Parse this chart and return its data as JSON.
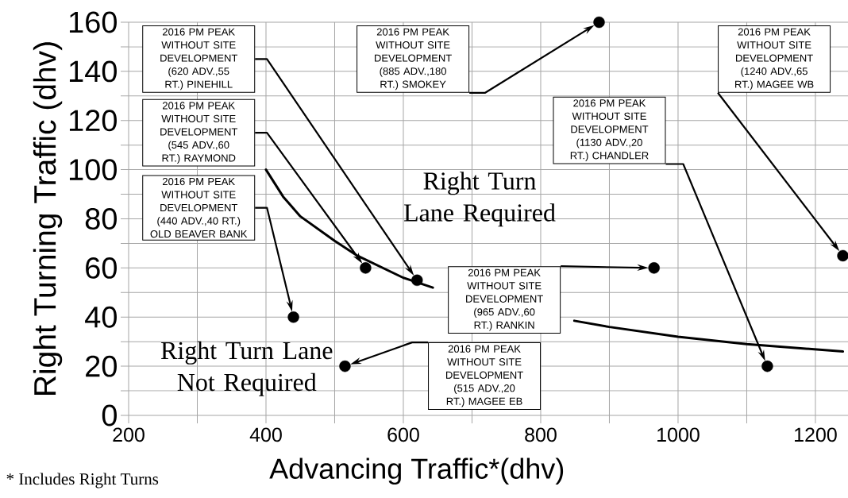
{
  "chart_data": {
    "type": "scatter",
    "xlabel": "Advancing Traffic*(dhv)",
    "ylabel": "Right Turning Traffic (dhv)",
    "xlim": [
      200,
      1250
    ],
    "ylim": [
      0,
      160
    ],
    "xticks": [
      200,
      400,
      600,
      800,
      1000,
      1200
    ],
    "yticks": [
      0,
      20,
      40,
      60,
      80,
      100,
      120,
      140,
      160
    ],
    "grid": true,
    "series": [
      {
        "type": "scatter",
        "color": "#000000",
        "marker": "circle",
        "x": [
          620,
          885,
          545,
          440,
          1240,
          1130,
          965,
          515
        ],
        "values": [
          55,
          160,
          60,
          40,
          65,
          20,
          60,
          20
        ]
      },
      {
        "type": "line",
        "color": "#000000",
        "marker": "none",
        "line_style": "solid",
        "x": [
          400,
          425,
          450,
          500,
          533,
          600,
          643,
          700,
          800,
          849,
          900,
          1000,
          1100,
          1240
        ],
        "values": [
          100,
          89,
          81,
          71,
          65,
          56,
          52,
          null,
          null,
          38.5,
          36,
          32,
          29,
          26
        ]
      }
    ],
    "annotations": [
      "2016 PM PEAK WITHOUT SITE DEVELOPMENT (620 ADV.,55 RT.) PINEHILL",
      "2016 PM PEAK WITHOUT SITE DEVELOPMENT (885 ADV.,180 RT.) SMOKEY",
      "2016 PM PEAK WITHOUT SITE DEVELOPMENT (545 ADV.,60 RT.) RAYMOND",
      "2016 PM PEAK WITHOUT SITE DEVELOPMENT (440 ADV.,40 RT.) OLD BEAVER BANK",
      "2016 PM PEAK WITHOUT SITE DEVELOPMENT (1240 ADV.,65 RT.) MAGEE WB",
      "2016 PM PEAK WITHOUT SITE DEVELOPMENT (1130 ADV.,20 RT.) CHANDLER",
      "2016 PM PEAK WITHOUT SITE DEVELOPMENT (965 ADV.,60 RT.) RANKIN",
      "2016 PM PEAK WITHOUT SITE DEVELOPMENT (515 ADV.,20 RT.) MAGEE EB",
      "Right Turn Lane Required",
      "Right Turn Lane Not Required",
      "* Includes Right Turns"
    ]
  }
}
